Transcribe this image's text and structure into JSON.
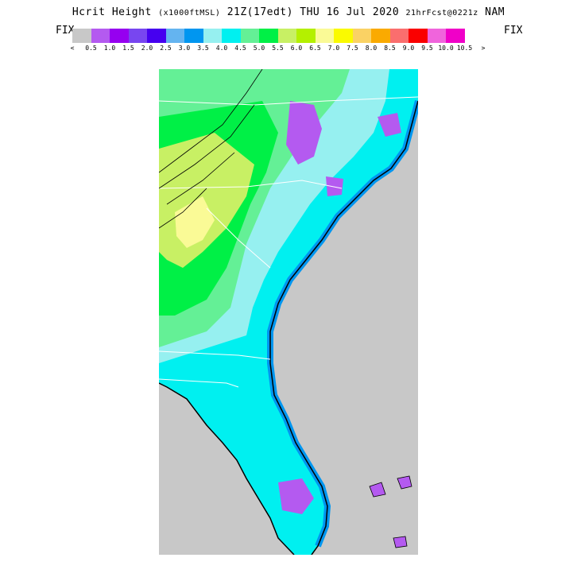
{
  "title": {
    "main": "Hcrit Height",
    "units": "(x1000ftMSL)",
    "time": "21Z(17edt) THU 16 Jul 2020",
    "forecast": "21hrFcst@0221z",
    "model": "NAM"
  },
  "fix_left": "FIX",
  "fix_right": "FIX",
  "legend": {
    "colors": [
      "#c8c8c8",
      "#b45af0",
      "#9600f0",
      "#7846f0",
      "#4600f0",
      "#64b4f0",
      "#0096f0",
      "#96f0f0",
      "#00f0f0",
      "#64f096",
      "#00f046",
      "#c8f064",
      "#b4f000",
      "#fafa96",
      "#fafa00",
      "#fad264",
      "#faaa00",
      "#fa6e6e",
      "#fa0000",
      "#f064dc",
      "#f000c8"
    ],
    "labels": [
      "<",
      "0.5",
      "1.0",
      "1.5",
      "2.0",
      "2.5",
      "3.0",
      "3.5",
      "4.0",
      "4.5",
      "5.0",
      "5.5",
      "6.0",
      "6.5",
      "7.0",
      "7.5",
      "8.0",
      "8.5",
      "9.0",
      "9.5",
      "10.0",
      "10.5",
      ">"
    ]
  }
}
